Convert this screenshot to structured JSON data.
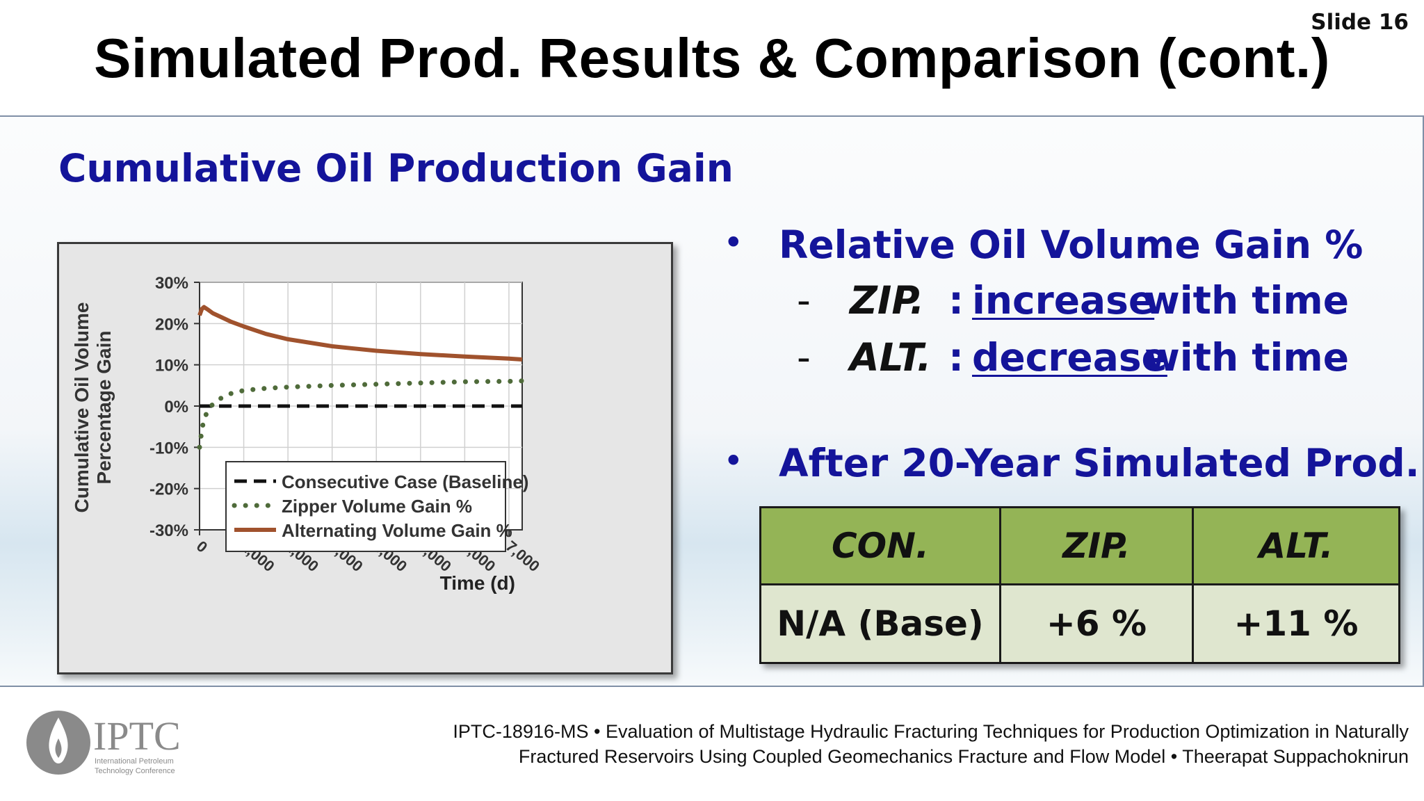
{
  "slide": {
    "number_label": "Slide 16",
    "title": "Simulated Prod. Results & Comparison (cont.)",
    "section_heading": "Cumulative Oil Production Gain"
  },
  "bullets": {
    "first": "Relative Oil Volume Gain %",
    "zip_dash": "-",
    "zip_term": "ZIP.",
    "zip_colon": ":",
    "zip_word": "increase",
    "zip_tail": "with time",
    "alt_dash": "-",
    "alt_term": "ALT.",
    "alt_colon": ":",
    "alt_word": "decrease",
    "alt_tail": "with time",
    "second": "After 20-Year Simulated Prod."
  },
  "table": {
    "headers": [
      "CON.",
      "ZIP.",
      "ALT."
    ],
    "values": [
      "N/A (Base)",
      "+6 %",
      "+11 %"
    ]
  },
  "footer": {
    "logo_text": "IPTC",
    "logo_sub_line1": "International Petroleum",
    "logo_sub_line2": "Technology Conference",
    "ref_line1": "IPTC-18916-MS • Evaluation of Multistage Hydraulic Fracturing Techniques for Production Optimization in Naturally",
    "ref_line2": "Fractured Reservoirs Using Coupled Geomechanics Fracture and Flow Model • Theerapat Suppachoknirun"
  },
  "colors": {
    "heading_blue": "#14149a",
    "table_header_green": "#94b456",
    "table_row_green": "#dfe6cf",
    "alternating_line": "#a0522d",
    "zipper_dots": "#4f6b3a",
    "baseline_dash": "#111111"
  },
  "chart_data": {
    "type": "line",
    "xlabel": "Time (d)",
    "ylabel": "Cumulative Oil Volume Percentage Gain",
    "xlim": [
      0,
      7300
    ],
    "ylim": [
      -30,
      30
    ],
    "xticks": [
      0,
      1000,
      2000,
      3000,
      4000,
      5000,
      6000,
      7000
    ],
    "xtick_labels": [
      "0",
      "1,000",
      "2,000",
      "3,000",
      "4,000",
      "5,000",
      "6,000",
      "7,000"
    ],
    "yticks": [
      -30,
      -20,
      -10,
      0,
      10,
      20,
      30
    ],
    "ytick_labels": [
      "-30%",
      "-20%",
      "-10%",
      "0%",
      "10%",
      "20%",
      "30%"
    ],
    "grid": true,
    "legend_position": "bottom-left",
    "series": [
      {
        "name": "Consecutive Case (Baseline)",
        "style": "dashed",
        "x": [
          0,
          7300
        ],
        "y": [
          0,
          0
        ]
      },
      {
        "name": "Zipper Volume Gain %",
        "style": "dotted",
        "x": [
          0,
          50,
          100,
          200,
          300,
          500,
          700,
          1000,
          1500,
          2000,
          3000,
          4000,
          5000,
          6000,
          7000,
          7300
        ],
        "y": [
          -10,
          -6,
          -3,
          -1,
          0.5,
          2,
          3,
          3.8,
          4.3,
          4.6,
          5.0,
          5.3,
          5.6,
          5.9,
          6.0,
          6.1
        ]
      },
      {
        "name": "Alternating Volume Gain %",
        "style": "solid",
        "x": [
          0,
          50,
          100,
          200,
          300,
          500,
          700,
          1000,
          1500,
          2000,
          3000,
          4000,
          5000,
          6000,
          7000,
          7300
        ],
        "y": [
          22,
          23.5,
          24,
          23.3,
          22.5,
          21.5,
          20.5,
          19.3,
          17.5,
          16.2,
          14.5,
          13.4,
          12.6,
          12.0,
          11.5,
          11.3
        ]
      }
    ]
  }
}
